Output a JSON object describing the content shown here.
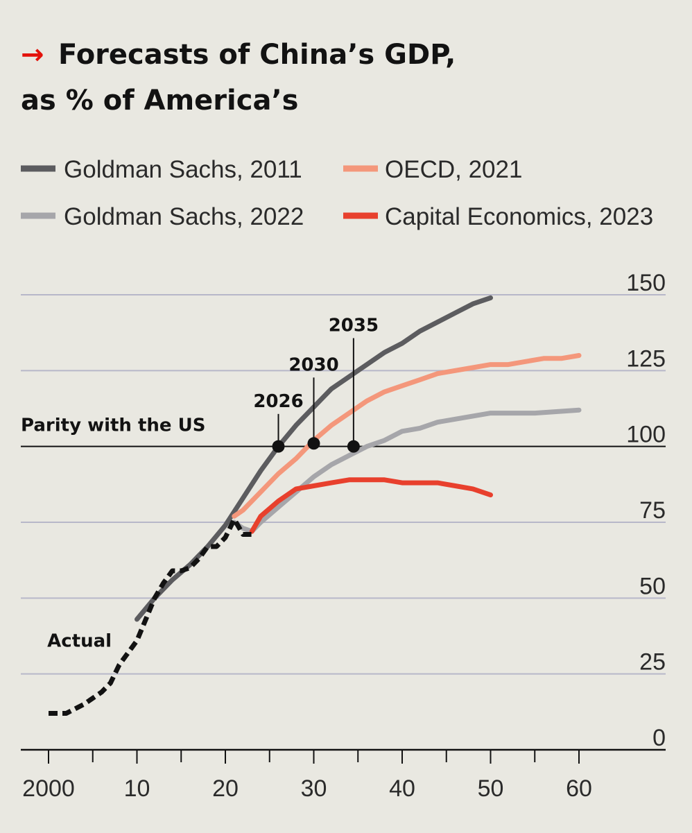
{
  "chart_data": {
    "type": "line",
    "title": "Forecasts of China’s GDP,",
    "title_line2": "as % of America’s",
    "title_arrow": "→",
    "xlabel": "",
    "ylabel": "",
    "xlim": [
      1997,
      2070
    ],
    "ylim": [
      0,
      150
    ],
    "x_ticks": [
      2000,
      2010,
      2020,
      2030,
      2040,
      2050,
      2060
    ],
    "x_tick_labels": [
      "2000",
      "10",
      "20",
      "30",
      "40",
      "50",
      "60"
    ],
    "y_ticks": [
      0,
      25,
      50,
      75,
      100,
      125,
      150
    ],
    "y_tick_labels": [
      "0",
      "25",
      "50",
      "75",
      "100",
      "125",
      "150"
    ],
    "grid": true,
    "parity": {
      "value": 100,
      "label": "Parity with the US"
    },
    "legend": [
      {
        "label": "Goldman Sachs, 2011",
        "color": "#5c5c5f"
      },
      {
        "label": "OECD, 2021",
        "color": "#f4977b"
      },
      {
        "label": "Goldman Sachs, 2022",
        "color": "#a6a6aa"
      },
      {
        "label": "Capital Economics, 2023",
        "color": "#e8402d"
      }
    ],
    "series": [
      {
        "name": "Goldman Sachs, 2011",
        "color": "#5c5c5f",
        "width": 7,
        "points": [
          [
            2010,
            43
          ],
          [
            2012,
            50
          ],
          [
            2014,
            56
          ],
          [
            2016,
            61
          ],
          [
            2018,
            67
          ],
          [
            2020,
            74
          ],
          [
            2022,
            83
          ],
          [
            2024,
            92
          ],
          [
            2026,
            100
          ],
          [
            2028,
            107
          ],
          [
            2030,
            113
          ],
          [
            2032,
            119
          ],
          [
            2034,
            123
          ],
          [
            2036,
            127
          ],
          [
            2038,
            131
          ],
          [
            2040,
            134
          ],
          [
            2042,
            138
          ],
          [
            2044,
            141
          ],
          [
            2046,
            144
          ],
          [
            2048,
            147
          ],
          [
            2050,
            149
          ]
        ]
      },
      {
        "name": "Goldman Sachs, 2022",
        "color": "#a6a6aa",
        "width": 7,
        "points": [
          [
            2021,
            75
          ],
          [
            2022,
            73
          ],
          [
            2023,
            72
          ],
          [
            2024,
            75
          ],
          [
            2026,
            80
          ],
          [
            2028,
            85
          ],
          [
            2030,
            90
          ],
          [
            2032,
            94
          ],
          [
            2034,
            97
          ],
          [
            2036,
            100
          ],
          [
            2038,
            102
          ],
          [
            2040,
            105
          ],
          [
            2042,
            106
          ],
          [
            2044,
            108
          ],
          [
            2046,
            109
          ],
          [
            2048,
            110
          ],
          [
            2050,
            111
          ],
          [
            2055,
            111
          ],
          [
            2060,
            112
          ]
        ]
      },
      {
        "name": "OECD, 2021",
        "color": "#f4977b",
        "width": 7,
        "points": [
          [
            2021,
            77
          ],
          [
            2022,
            79
          ],
          [
            2024,
            85
          ],
          [
            2026,
            91
          ],
          [
            2028,
            96
          ],
          [
            2030,
            102
          ],
          [
            2032,
            107
          ],
          [
            2034,
            111
          ],
          [
            2036,
            115
          ],
          [
            2038,
            118
          ],
          [
            2040,
            120
          ],
          [
            2042,
            122
          ],
          [
            2044,
            124
          ],
          [
            2046,
            125
          ],
          [
            2048,
            126
          ],
          [
            2050,
            127
          ],
          [
            2052,
            127
          ],
          [
            2054,
            128
          ],
          [
            2056,
            129
          ],
          [
            2058,
            129
          ],
          [
            2060,
            130
          ]
        ]
      },
      {
        "name": "Capital Economics, 2023",
        "color": "#e8402d",
        "width": 7,
        "points": [
          [
            2023,
            72
          ],
          [
            2024,
            77
          ],
          [
            2026,
            82
          ],
          [
            2028,
            86
          ],
          [
            2030,
            87
          ],
          [
            2032,
            88
          ],
          [
            2034,
            89
          ],
          [
            2036,
            89
          ],
          [
            2038,
            89
          ],
          [
            2040,
            88
          ],
          [
            2042,
            88
          ],
          [
            2044,
            88
          ],
          [
            2046,
            87
          ],
          [
            2048,
            86
          ],
          [
            2050,
            84
          ]
        ]
      },
      {
        "name": "Actual",
        "color": "#121212",
        "width": 7,
        "dashed": true,
        "points": [
          [
            2000,
            12
          ],
          [
            2002,
            12
          ],
          [
            2004,
            15
          ],
          [
            2006,
            19
          ],
          [
            2007,
            22
          ],
          [
            2008,
            28
          ],
          [
            2010,
            36
          ],
          [
            2011,
            43
          ],
          [
            2012,
            50
          ],
          [
            2013,
            55
          ],
          [
            2014,
            59
          ],
          [
            2015,
            59
          ],
          [
            2016,
            60
          ],
          [
            2017,
            63
          ],
          [
            2018,
            67
          ],
          [
            2019,
            67
          ],
          [
            2020,
            70
          ],
          [
            2021,
            76
          ],
          [
            2022,
            71
          ],
          [
            2023,
            71
          ]
        ]
      }
    ],
    "milestones": [
      {
        "label": "2026",
        "x": 2026,
        "y": 100,
        "label_y": 113
      },
      {
        "label": "2030",
        "x": 2030,
        "y": 101,
        "label_y": 125
      },
      {
        "label": "2035",
        "x": 2034.5,
        "y": 100,
        "label_y": 138
      }
    ],
    "annotations": [
      {
        "text": "Actual",
        "x": 2003.5,
        "y": 34
      }
    ]
  }
}
